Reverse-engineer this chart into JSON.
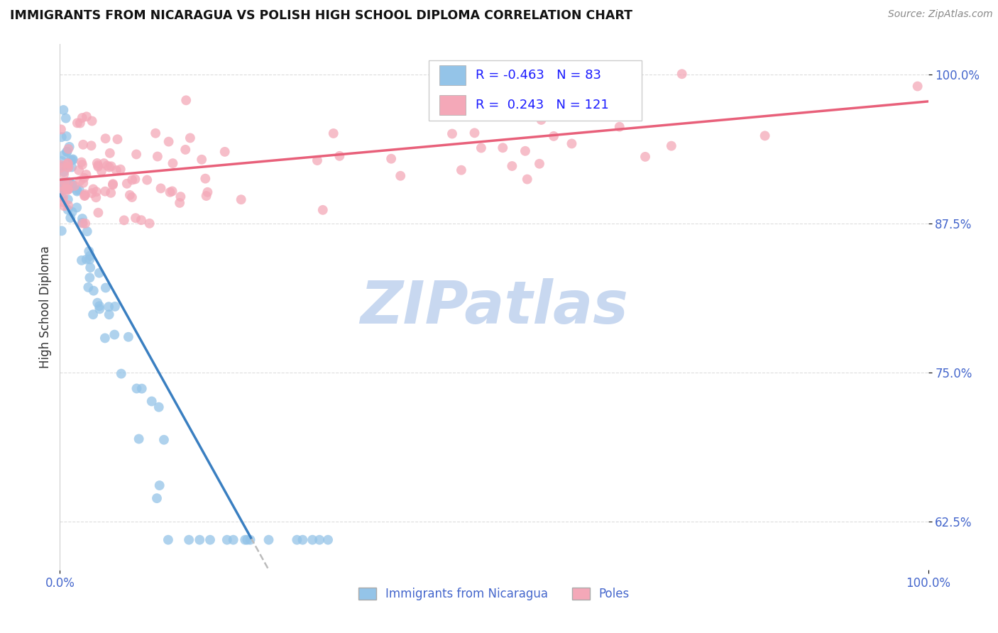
{
  "title": "IMMIGRANTS FROM NICARAGUA VS POLISH HIGH SCHOOL DIPLOMA CORRELATION CHART",
  "source": "Source: ZipAtlas.com",
  "ylabel": "High School Diploma",
  "ytick_labels": [
    "62.5%",
    "75.0%",
    "87.5%",
    "100.0%"
  ],
  "ytick_values": [
    0.625,
    0.75,
    0.875,
    1.0
  ],
  "xlim": [
    0.0,
    1.0
  ],
  "ylim": [
    0.585,
    1.025
  ],
  "legend_r_nicaragua": "-0.463",
  "legend_n_nicaragua": "83",
  "legend_r_poles": "0.243",
  "legend_n_poles": "121",
  "nicaragua_color": "#94C4E8",
  "poles_color": "#F4A8B8",
  "nicaragua_line_color": "#3A7FC1",
  "poles_line_color": "#E8607A",
  "dashed_line_color": "#BBBBBB",
  "watermark_text": "ZIPatlas",
  "watermark_color": "#C8D8F0",
  "background_color": "#FFFFFF",
  "grid_color": "#DDDDDD",
  "tick_color": "#4466CC",
  "title_color": "#111111",
  "source_color": "#888888",
  "ylabel_color": "#333333",
  "legend_r_color": "#1A1AFF",
  "legend_n_color": "#1A1AFF"
}
